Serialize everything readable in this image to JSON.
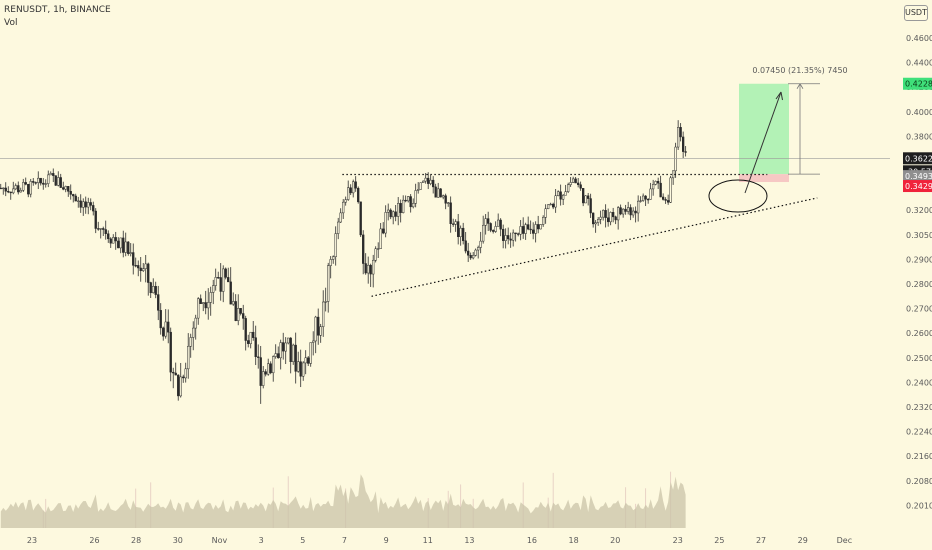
{
  "header": {
    "symbol_line": "RENUSDT, 1h, BINANCE",
    "indicator": "Vol"
  },
  "currency_button": "USDT",
  "colors": {
    "background": "#fdf9df",
    "candle": "#2b2b2b",
    "volume": "#c9c3a8",
    "target_zone": "#b3f2b6",
    "stop_zone": "#f6c8c4",
    "price_tag_current": "#1e1e1e",
    "price_tag_target": "#3fe07a",
    "price_tag_entry": "#8f8f8f",
    "price_tag_stop": "#f0233b"
  },
  "chart_data": {
    "type": "candlestick",
    "x_ticks": [
      "23",
      "26",
      "28",
      "30",
      "Nov",
      "3",
      "5",
      "7",
      "9",
      "11",
      "13",
      "16",
      "18",
      "20",
      "23",
      "25",
      "27",
      "29",
      "Dec"
    ],
    "y_ticks": [
      "0.46000",
      "0.44000",
      "0.42000",
      "0.40000",
      "0.38000",
      "0.36000",
      "0.34000",
      "0.32000",
      "0.30500",
      "0.29000",
      "0.28000",
      "0.27000",
      "0.26000",
      "0.25000",
      "0.24000",
      "0.23200",
      "0.22400",
      "0.21600",
      "0.20800",
      "0.20100"
    ],
    "price_path": [
      {
        "x": "23",
        "y": 0.338
      },
      {
        "x": "24",
        "y": 0.346
      },
      {
        "x": "25",
        "y": 0.333
      },
      {
        "x": "26",
        "y": 0.315
      },
      {
        "x": "27",
        "y": 0.302
      },
      {
        "x": "28",
        "y": 0.29
      },
      {
        "x": "29",
        "y": 0.275
      },
      {
        "x": "30",
        "y": 0.237
      },
      {
        "x": "31",
        "y": 0.272
      },
      {
        "x": "Nov",
        "y": 0.284
      },
      {
        "x": "2",
        "y": 0.266
      },
      {
        "x": "3",
        "y": 0.244
      },
      {
        "x": "4",
        "y": 0.255
      },
      {
        "x": "5",
        "y": 0.246
      },
      {
        "x": "6",
        "y": 0.27
      },
      {
        "x": "7",
        "y": 0.326
      },
      {
        "x": "7.5",
        "y": 0.349
      },
      {
        "x": "8",
        "y": 0.278
      },
      {
        "x": "9",
        "y": 0.314
      },
      {
        "x": "10",
        "y": 0.325
      },
      {
        "x": "11",
        "y": 0.345
      },
      {
        "x": "12",
        "y": 0.32
      },
      {
        "x": "13",
        "y": 0.295
      },
      {
        "x": "14",
        "y": 0.313
      },
      {
        "x": "15",
        "y": 0.302
      },
      {
        "x": "16",
        "y": 0.307
      },
      {
        "x": "17",
        "y": 0.326
      },
      {
        "x": "18",
        "y": 0.346
      },
      {
        "x": "19",
        "y": 0.315
      },
      {
        "x": "20",
        "y": 0.318
      },
      {
        "x": "21",
        "y": 0.323
      },
      {
        "x": "22",
        "y": 0.343
      },
      {
        "x": "22.5",
        "y": 0.325
      },
      {
        "x": "23",
        "y": 0.383
      },
      {
        "x": "23.5",
        "y": 0.3622
      }
    ],
    "volume_level": "low with spikes around 7–8 Nov and 23 Nov",
    "levels": {
      "current_price": "0.36220",
      "countdown": "30:57",
      "target": "0.42281",
      "entry": "0.34932",
      "stop": "0.34290"
    },
    "annotations": {
      "measure_label": "0.07450 (21.35%) 7450",
      "resistance_line": 0.349,
      "ascending_trendline": {
        "from": {
          "x": "8",
          "y": 0.275
        },
        "to": {
          "x": "26",
          "y": 0.33
        }
      },
      "ellipse_near": "23"
    },
    "grid": false
  }
}
